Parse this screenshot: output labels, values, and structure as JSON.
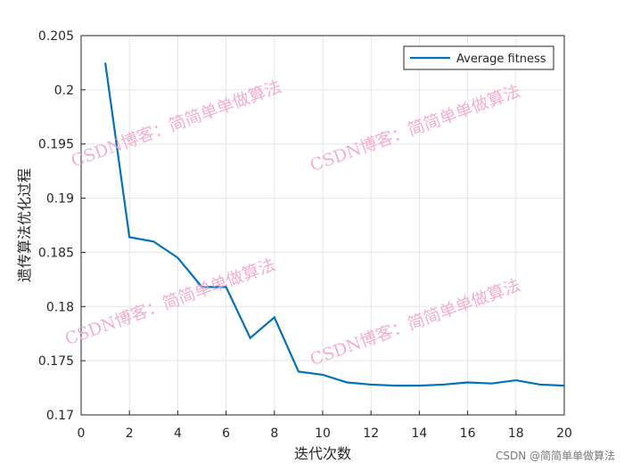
{
  "chart_data": {
    "type": "line",
    "xlabel": "迭代次数",
    "ylabel": "遗传算法优化过程",
    "x": [
      1,
      2,
      3,
      4,
      5,
      6,
      7,
      8,
      9,
      10,
      11,
      12,
      13,
      14,
      15,
      16,
      17,
      18,
      19,
      20
    ],
    "series": [
      {
        "name": "Average fitness",
        "color": "#0072BD",
        "values": [
          0.2025,
          0.1864,
          0.186,
          0.1845,
          0.1818,
          0.1818,
          0.1771,
          0.179,
          0.174,
          0.1737,
          0.173,
          0.1728,
          0.1727,
          0.1727,
          0.1728,
          0.173,
          0.1729,
          0.1732,
          0.1728,
          0.1727
        ]
      }
    ],
    "xlim": [
      0,
      20
    ],
    "xticks": [
      0,
      2,
      4,
      6,
      8,
      10,
      12,
      14,
      16,
      18,
      20
    ],
    "ylim": [
      0.17,
      0.205
    ],
    "yticks": [
      0.17,
      0.175,
      0.18,
      0.185,
      0.19,
      0.195,
      0.2,
      0.205
    ],
    "grid": true,
    "legend": "upper right"
  },
  "watermarks": [
    "CSDN博客：简简单单做算法",
    "CSDN博客：简简单单做算法",
    "CSDN博客：简简单单做算法",
    "CSDN博客：简简单单做算法"
  ],
  "footer": "CSDN @简简单单做算法"
}
